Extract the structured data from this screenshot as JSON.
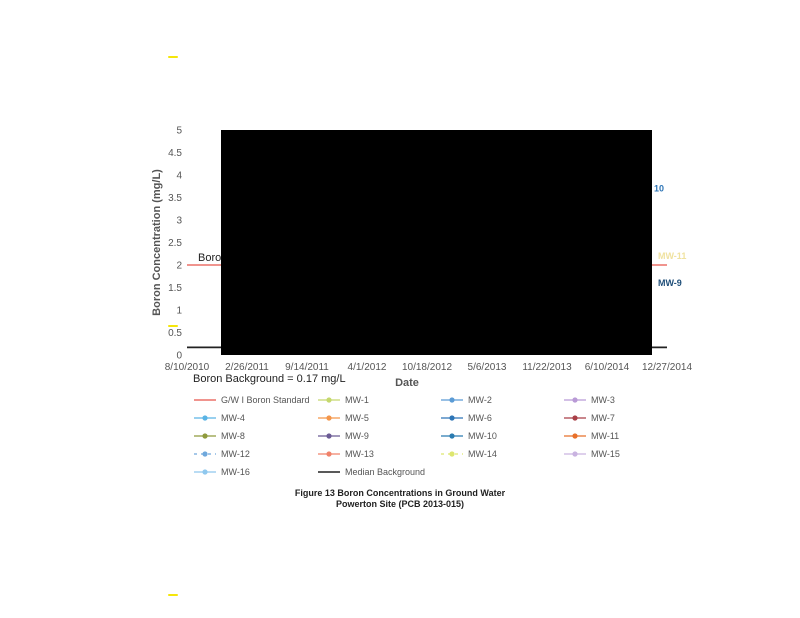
{
  "chart_data": {
    "type": "line",
    "xlabel": "Date",
    "ylabel": "Boron Concentration (mg/L)",
    "ylim": [
      0,
      5
    ],
    "y_ticks": [
      "0",
      "0.5",
      "1",
      "1.5",
      "2",
      "2.5",
      "3",
      "3.5",
      "4",
      "4.5",
      "5"
    ],
    "x_ticks": [
      "8/10/2010",
      "2/26/2011",
      "9/14/2011",
      "4/1/2012",
      "10/18/2012",
      "5/6/2013",
      "11/22/2013",
      "6/10/2014",
      "12/27/2014"
    ],
    "xlim": [
      "8/10/2010",
      "12/27/2014"
    ],
    "redacted_region": true,
    "reference_lines": [
      {
        "name": "GW I Boron Standard",
        "value": 2,
        "color": "#e8534a"
      },
      {
        "name": "Median Background",
        "value": 0.17,
        "color": "#222222"
      }
    ],
    "annotations": {
      "standard_label": "Boro",
      "background_label": "Boron Background = 0.17 mg/L"
    },
    "series_callouts": [
      {
        "text": "10",
        "color": "#2e75b6",
        "y": 3.7
      },
      {
        "text": "MW-11",
        "color": "#f0e2a0",
        "y": 2.2
      },
      {
        "text": "MW-9",
        "color": "#1f4e79",
        "y": 1.6
      }
    ],
    "legend": [
      {
        "name": "G/W I Boron Standard",
        "color": "#e8534a",
        "marker": "none",
        "dash": false
      },
      {
        "name": "MW-1",
        "color": "#c5d86d",
        "marker": "circle",
        "dash": false
      },
      {
        "name": "MW-2",
        "color": "#5b9bd5",
        "marker": "circle",
        "dash": false
      },
      {
        "name": "MW-3",
        "color": "#b99ad6",
        "marker": "circle",
        "dash": false
      },
      {
        "name": "MW-4",
        "color": "#5ab4e5",
        "marker": "circle",
        "dash": false
      },
      {
        "name": "MW-5",
        "color": "#f4964a",
        "marker": "circle",
        "dash": false
      },
      {
        "name": "MW-6",
        "color": "#2e75b6",
        "marker": "circle",
        "dash": false
      },
      {
        "name": "MW-7",
        "color": "#a93f47",
        "marker": "circle",
        "dash": false
      },
      {
        "name": "MW-8",
        "color": "#8f9a3c",
        "marker": "circle",
        "dash": false
      },
      {
        "name": "MW-9",
        "color": "#6b5b95",
        "marker": "circle",
        "dash": false
      },
      {
        "name": "MW-10",
        "color": "#2a7bb0",
        "marker": "circle",
        "dash": false
      },
      {
        "name": "MW-11",
        "color": "#e8702a",
        "marker": "circle",
        "dash": false
      },
      {
        "name": "MW-12",
        "color": "#6fa8dc",
        "marker": "circle",
        "dash": true
      },
      {
        "name": "MW-13",
        "color": "#f0826a",
        "marker": "circle",
        "dash": false
      },
      {
        "name": "MW-14",
        "color": "#dde66f",
        "marker": "circle",
        "dash": true
      },
      {
        "name": "MW-15",
        "color": "#c9b3e0",
        "marker": "circle",
        "dash": false
      },
      {
        "name": "MW-16",
        "color": "#8fc8ee",
        "marker": "circle",
        "dash": false
      },
      {
        "name": "Median Background",
        "color": "#222222",
        "marker": "none",
        "dash": false
      }
    ]
  },
  "caption": {
    "line1": "Figure 13   Boron Concentrations in Ground Water",
    "line2": "Powerton Site (PCB 2013-015)"
  },
  "highlight_color": "#f5e60a"
}
